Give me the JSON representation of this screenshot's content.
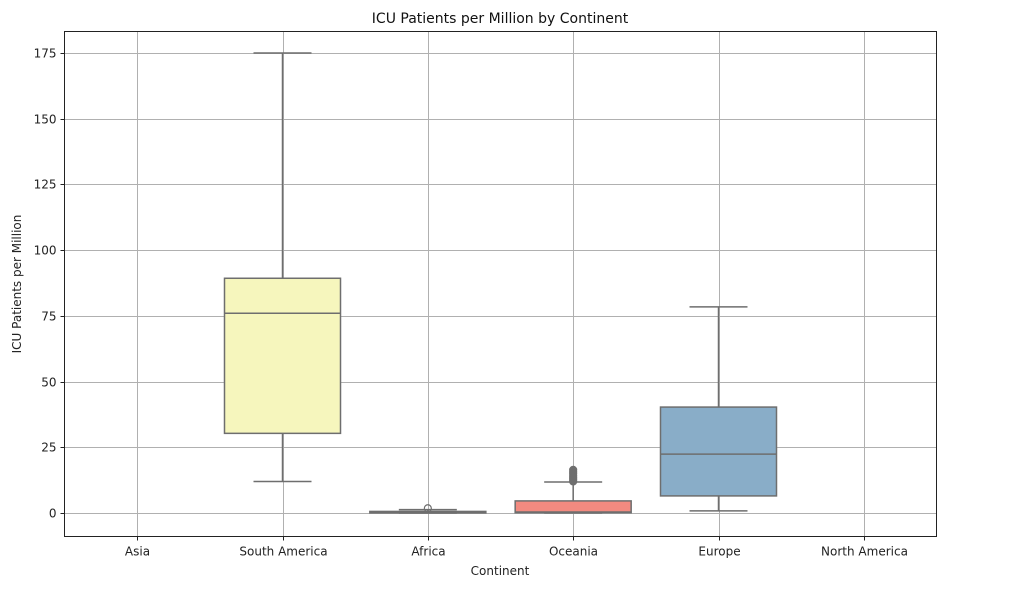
{
  "chart_data": {
    "type": "box",
    "title": "ICU Patients per Million by Continent",
    "xlabel": "Continent",
    "ylabel": "ICU Patients per Million",
    "ylim": [
      -9,
      183
    ],
    "yticks": [
      0,
      25,
      50,
      75,
      100,
      125,
      150,
      175
    ],
    "ytick_labels": [
      "0",
      "25",
      "50",
      "75",
      "100",
      "125",
      "150",
      "175"
    ],
    "grid": true,
    "categories": [
      "Asia",
      "South America",
      "Africa",
      "Oceania",
      "Europe",
      "North America"
    ],
    "series": [
      {
        "name": "Asia",
        "box": null,
        "color": "#8dd3c7",
        "outliers": []
      },
      {
        "name": "South America",
        "box": {
          "whislo": 12.0,
          "q1": 30.3,
          "med": 76.0,
          "q3": 89.3,
          "whishi": 175.0
        },
        "color": "#f6f6bd",
        "outliers": []
      },
      {
        "name": "Africa",
        "box": {
          "whislo": 0.0,
          "q1": 0.1,
          "med": 0.3,
          "q3": 0.6,
          "whishi": 1.3
        },
        "color": "#c9c6dd",
        "outliers": [
          1.8
        ]
      },
      {
        "name": "Oceania",
        "box": {
          "whislo": 0.0,
          "q1": 0.1,
          "med": 0.4,
          "q3": 4.6,
          "whishi": 11.8
        },
        "color": "#f28a80",
        "outliers": [
          12.0,
          12.8,
          13.5,
          14.2,
          15.0,
          15.7,
          16.4
        ]
      },
      {
        "name": "Europe",
        "box": {
          "whislo": 0.8,
          "q1": 6.5,
          "med": 22.4,
          "q3": 40.3,
          "whishi": 78.4
        },
        "color": "#89adc8",
        "outliers": []
      },
      {
        "name": "North America",
        "box": null,
        "color": "#fdb462",
        "outliers": []
      }
    ],
    "line_color": "#6e6e6e",
    "grid_color": "#b0b0b0"
  }
}
